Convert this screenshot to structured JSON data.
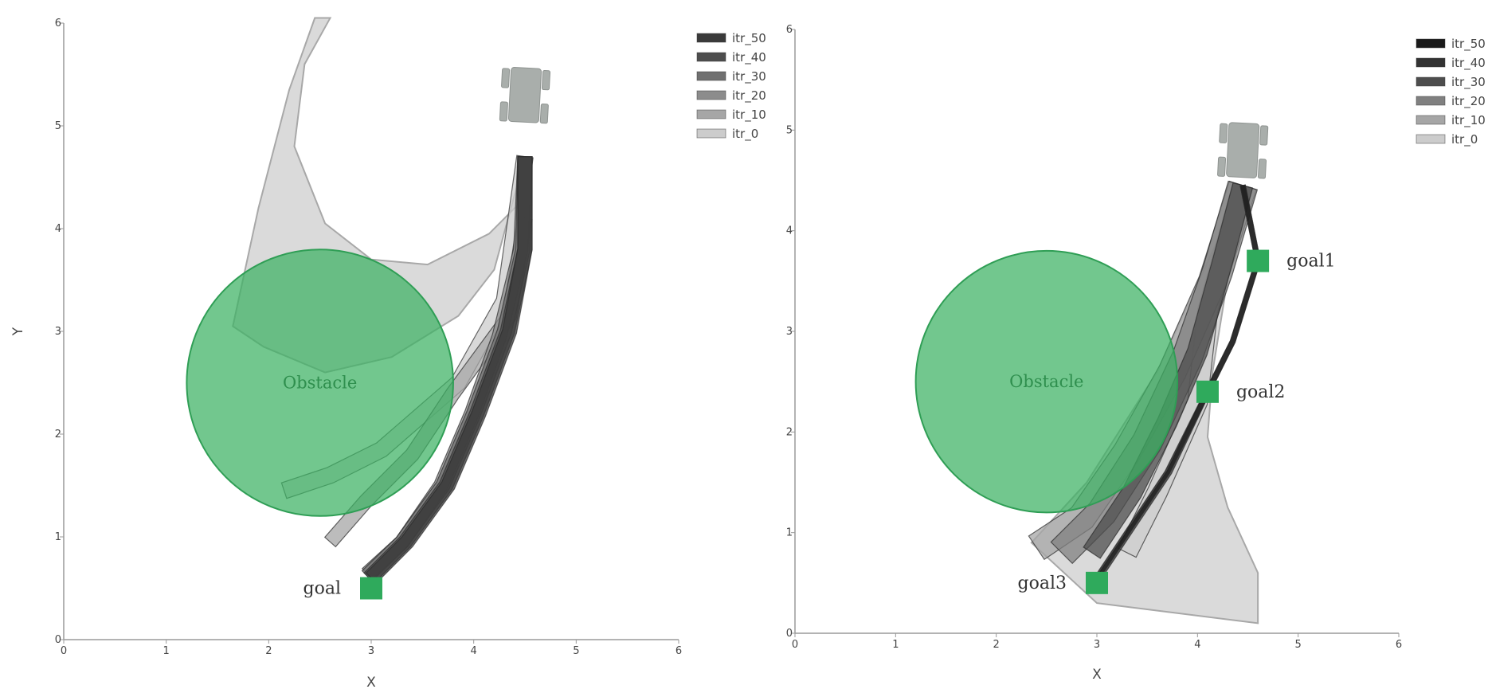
{
  "chart_data": [
    {
      "type": "line",
      "xlabel": "X",
      "ylabel": "Y",
      "xlim": [
        0,
        6
      ],
      "ylim": [
        0,
        6
      ],
      "xticks": [
        "0",
        "1",
        "2",
        "3",
        "4",
        "5",
        "6"
      ],
      "yticks": [
        "0",
        "1",
        "2",
        "3",
        "4",
        "5",
        "6"
      ],
      "legend_position": "top-right",
      "obstacle": {
        "label": "Obstacle",
        "cx": 2.5,
        "cy": 2.5,
        "r": 1.3,
        "color": "#3cb263"
      },
      "robot": {
        "x": 4.5,
        "y": 5.3
      },
      "goals": [
        {
          "label": "goal",
          "x": 3.0,
          "y": 0.5
        }
      ],
      "series": [
        {
          "name": "itr_50",
          "color": "#3a3a3a",
          "width": 0.14,
          "points": [
            [
              4.5,
              4.7
            ],
            [
              4.5,
              3.8
            ],
            [
              4.35,
              3.0
            ],
            [
              4.05,
              2.2
            ],
            [
              3.75,
              1.5
            ],
            [
              3.35,
              0.95
            ],
            [
              3.0,
              0.6
            ]
          ]
        },
        {
          "name": "itr_40",
          "color": "#4d4d4d",
          "width": 0.14,
          "points": [
            [
              4.5,
              4.7
            ],
            [
              4.5,
              3.8
            ],
            [
              4.33,
              3.0
            ],
            [
              4.03,
              2.2
            ],
            [
              3.73,
              1.5
            ],
            [
              3.33,
              0.95
            ],
            [
              2.98,
              0.6
            ]
          ]
        },
        {
          "name": "itr_30",
          "color": "#707070",
          "width": 0.14,
          "points": [
            [
              4.5,
              4.7
            ],
            [
              4.48,
              3.8
            ],
            [
              4.3,
              3.0
            ],
            [
              4.0,
              2.2
            ],
            [
              3.7,
              1.5
            ],
            [
              3.3,
              0.95
            ],
            [
              2.96,
              0.62
            ]
          ]
        },
        {
          "name": "itr_20",
          "color": "#8c8c8c",
          "width": 0.14,
          "points": [
            [
              4.5,
              4.7
            ],
            [
              4.46,
              3.8
            ],
            [
              4.25,
              2.95
            ],
            [
              3.98,
              2.2
            ],
            [
              3.68,
              1.5
            ],
            [
              3.3,
              0.95
            ],
            [
              2.96,
              0.64
            ]
          ]
        },
        {
          "name": "itr_10",
          "color": "#a6a6a6",
          "width": 0.14,
          "points": [
            [
              4.5,
              4.1
            ],
            [
              4.35,
              3.15
            ],
            [
              3.8,
              2.4
            ],
            [
              3.4,
              1.8
            ],
            [
              2.95,
              1.35
            ],
            [
              2.6,
              0.95
            ]
          ]
        },
        {
          "name": "itr_0",
          "color": "#cccccc",
          "width": 0.16,
          "points": [
            [
              4.5,
              4.7
            ],
            [
              4.3,
              3.3
            ],
            [
              3.85,
              2.5
            ],
            [
              3.1,
              1.85
            ],
            [
              2.6,
              1.6
            ],
            [
              2.15,
              1.45
            ]
          ]
        }
      ],
      "itr0_region": [
        [
          4.5,
          4.7
        ],
        [
          4.45,
          4.25
        ],
        [
          4.15,
          3.95
        ],
        [
          3.55,
          3.65
        ],
        [
          3.0,
          3.7
        ],
        [
          2.55,
          4.05
        ],
        [
          2.25,
          4.8
        ],
        [
          2.35,
          5.6
        ],
        [
          2.6,
          6.05
        ],
        [
          2.45,
          6.05
        ],
        [
          2.2,
          5.35
        ],
        [
          1.9,
          4.2
        ],
        [
          1.65,
          3.05
        ],
        [
          1.95,
          2.85
        ],
        [
          2.55,
          2.6
        ],
        [
          3.2,
          2.75
        ],
        [
          3.85,
          3.15
        ],
        [
          4.2,
          3.6
        ],
        [
          4.5,
          4.7
        ]
      ]
    },
    {
      "type": "line",
      "xlabel": "X",
      "ylabel": "",
      "xlim": [
        0,
        6
      ],
      "ylim": [
        0,
        6
      ],
      "xticks": [
        "0",
        "1",
        "2",
        "3",
        "4",
        "5",
        "6"
      ],
      "yticks": [
        "0",
        "1",
        "2",
        "3",
        "4",
        "5",
        "6"
      ],
      "legend_position": "top-right",
      "obstacle": {
        "label": "Obstacle",
        "cx": 2.5,
        "cy": 2.5,
        "r": 1.3,
        "color": "#3cb263"
      },
      "robot": {
        "x": 4.45,
        "y": 4.8
      },
      "goals": [
        {
          "label": "goal1",
          "x": 4.6,
          "y": 3.7
        },
        {
          "label": "goal2",
          "x": 4.1,
          "y": 2.4
        },
        {
          "label": "goal3",
          "x": 3.0,
          "y": 0.5
        }
      ],
      "series": [
        {
          "name": "itr_50",
          "color": "#1a1a1a",
          "width": 0.05,
          "points": [
            [
              4.45,
              4.45
            ],
            [
              4.6,
              3.7
            ],
            [
              4.35,
              2.9
            ],
            [
              4.1,
              2.4
            ],
            [
              3.7,
              1.6
            ],
            [
              3.3,
              1.0
            ],
            [
              3.0,
              0.55
            ]
          ]
        },
        {
          "name": "itr_40",
          "color": "#333333",
          "width": 0.05,
          "points": [
            [
              4.45,
              4.45
            ],
            [
              4.6,
              3.7
            ],
            [
              4.35,
              2.9
            ],
            [
              4.1,
              2.4
            ],
            [
              3.72,
              1.6
            ],
            [
              3.32,
              1.0
            ],
            [
              3.02,
              0.55
            ]
          ]
        },
        {
          "name": "itr_30",
          "color": "#4d4d4d",
          "width": 0.2,
          "points": [
            [
              4.45,
              4.45
            ],
            [
              4.25,
              3.7
            ],
            [
              4.0,
              2.8
            ],
            [
              3.7,
              2.1
            ],
            [
              3.35,
              1.4
            ],
            [
              2.95,
              0.8
            ]
          ]
        },
        {
          "name": "itr_20",
          "color": "#808080",
          "width": 0.3,
          "points": [
            [
              4.45,
              4.45
            ],
            [
              4.2,
              3.6
            ],
            [
              3.9,
              2.75
            ],
            [
              3.5,
              1.9
            ],
            [
              3.05,
              1.2
            ],
            [
              2.65,
              0.8
            ]
          ]
        },
        {
          "name": "itr_10",
          "color": "#a6a6a6",
          "width": 0.28,
          "points": [
            [
              4.45,
              4.45
            ],
            [
              4.15,
              3.5
            ],
            [
              3.75,
              2.6
            ],
            [
              3.3,
              1.8
            ],
            [
              2.85,
              1.15
            ],
            [
              2.4,
              0.85
            ]
          ]
        },
        {
          "name": "itr_0",
          "color": "#cccccc",
          "width": 0.2,
          "points": [
            [
              4.45,
              4.45
            ],
            [
              4.1,
              3.2
            ],
            [
              4.0,
              2.3
            ],
            [
              3.6,
              1.4
            ],
            [
              3.3,
              0.8
            ]
          ]
        }
      ],
      "itr0_region": [
        [
          4.45,
          4.45
        ],
        [
          4.15,
          2.6
        ],
        [
          4.1,
          1.95
        ],
        [
          4.3,
          1.25
        ],
        [
          4.6,
          0.6
        ],
        [
          4.6,
          0.1
        ],
        [
          3.0,
          0.3
        ],
        [
          2.35,
          0.9
        ],
        [
          2.9,
          1.5
        ],
        [
          3.6,
          2.6
        ],
        [
          4.45,
          4.45
        ]
      ]
    }
  ]
}
